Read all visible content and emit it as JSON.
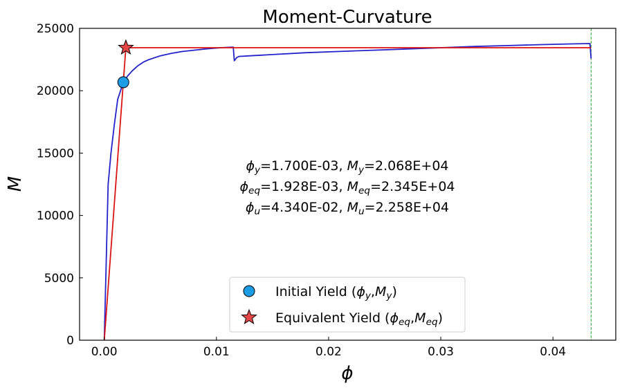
{
  "chart_data": {
    "type": "line",
    "title": "Moment-Curvature",
    "xlabel": "ϕ",
    "ylabel": "M",
    "xlim": [
      -0.0022,
      0.0456
    ],
    "ylim": [
      0,
      25000
    ],
    "xticks": [
      0.0,
      0.01,
      0.02,
      0.03,
      0.04
    ],
    "xtick_labels": [
      "0.00",
      "0.01",
      "0.02",
      "0.03",
      "0.04"
    ],
    "yticks": [
      0,
      5000,
      10000,
      15000,
      20000,
      25000
    ],
    "ytick_labels": [
      "0",
      "5000",
      "10000",
      "15000",
      "20000",
      "25000"
    ],
    "grid": false,
    "legend_position": "bottom-center",
    "series": [
      {
        "role": "moment-curvature",
        "color": "#2222cc",
        "x": [
          0,
          0.00035,
          0.0006,
          0.0009,
          0.0012,
          0.0017,
          0.0021,
          0.0025,
          0.003,
          0.0035,
          0.004,
          0.005,
          0.006,
          0.007,
          0.008,
          0.009,
          0.01,
          0.0108,
          0.0115,
          0.0116,
          0.0118,
          0.012,
          0.013,
          0.015,
          0.018,
          0.021,
          0.024,
          0.027,
          0.03,
          0.033,
          0.036,
          0.039,
          0.042,
          0.0433,
          0.0434
        ],
        "y": [
          0,
          12500,
          15000,
          17300,
          19300,
          20680,
          21200,
          21600,
          22000,
          22300,
          22500,
          22800,
          23000,
          23150,
          23250,
          23350,
          23420,
          23470,
          23500,
          22400,
          22650,
          22750,
          22800,
          22900,
          23050,
          23150,
          23250,
          23350,
          23450,
          23550,
          23620,
          23700,
          23760,
          23780,
          22580
        ]
      },
      {
        "role": "bilinear-idealization",
        "color": "#dd1111",
        "x": [
          0,
          0.001928,
          0.0434
        ],
        "y": [
          0,
          23450,
          23450
        ]
      }
    ],
    "markers": [
      {
        "name": "Initial Yield",
        "x": 0.0017,
        "y": 20680,
        "shape": "circle",
        "color": "#1b9ce5"
      },
      {
        "name": "Equivalent Yield",
        "x": 0.001928,
        "y": 23450,
        "shape": "star",
        "color": "#e64545"
      }
    ],
    "vline": {
      "x": 0.0434,
      "color": "#22aa22",
      "style": "dashed"
    },
    "annotation_lines": [
      {
        "sym1": "ϕ",
        "sub1": "y",
        "val1": "=1.700E-03, ",
        "sym2": "M",
        "sub2": "y",
        "val2": "=2.068E+04"
      },
      {
        "sym1": "ϕ",
        "sub1": "eq",
        "val1": "=1.928E-03, ",
        "sym2": "M",
        "sub2": "eq",
        "val2": "=2.345E+04"
      },
      {
        "sym1": "ϕ",
        "sub1": "u",
        "val1": "=4.340E-02, ",
        "sym2": "M",
        "sub2": "u",
        "val2": "=2.258E+04"
      }
    ],
    "legend": [
      {
        "shape": "circle",
        "color": "#1b9ce5",
        "text": "Initial Yield (",
        "s1": "ϕ",
        "b1": "y",
        "sep": ",",
        "s2": "M",
        "b2": "y",
        "close": ")"
      },
      {
        "shape": "star",
        "color": "#e64545",
        "text": "Equivalent Yield (",
        "s1": "ϕ",
        "b1": "eq",
        "sep": ",",
        "s2": "M",
        "b2": "eq",
        "close": ")"
      }
    ]
  }
}
